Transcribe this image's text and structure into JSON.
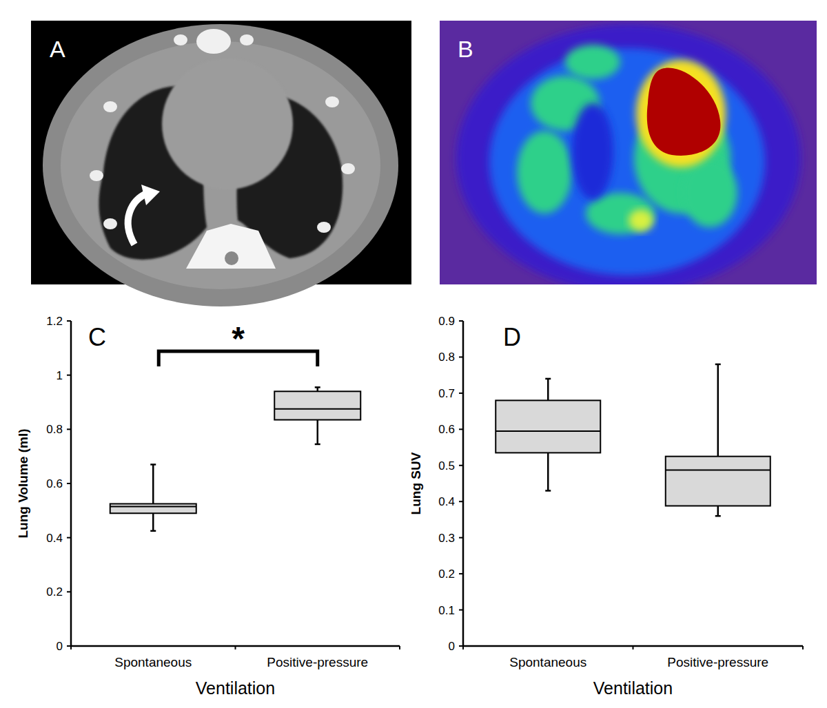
{
  "images": [
    {
      "label": "A"
    },
    {
      "label": "B"
    }
  ],
  "chart_data": [
    {
      "type": "box",
      "title": "C",
      "x_label": "Ventilation",
      "y_label": "Lung Volume (ml)",
      "categories": [
        "Spontaneous",
        "Positive-pressure"
      ],
      "boxes": [
        {
          "min": 0.425,
          "q1": 0.49,
          "median": 0.515,
          "q3": 0.525,
          "max": 0.67
        },
        {
          "min": 0.745,
          "q1": 0.835,
          "median": 0.875,
          "q3": 0.94,
          "max": 0.955
        }
      ],
      "color": "#d9d9d9",
      "annotation": "*",
      "ylim": [
        0,
        1.2
      ],
      "yticks": [
        0,
        0.2,
        0.4,
        0.6,
        0.8,
        1,
        1.2
      ],
      "grid": false
    },
    {
      "type": "box",
      "title": "D",
      "x_label": "Ventilation",
      "y_label": "Lung SUV",
      "categories": [
        "Spontaneous",
        "Positive-pressure"
      ],
      "boxes": [
        {
          "min": 0.43,
          "q1": 0.535,
          "median": 0.595,
          "q3": 0.68,
          "max": 0.74
        },
        {
          "min": 0.36,
          "q1": 0.388,
          "median": 0.487,
          "q3": 0.525,
          "max": 0.78
        }
      ],
      "color": "#d9d9d9",
      "ylim": [
        0,
        0.9
      ],
      "yticks": [
        0,
        0.1,
        0.2,
        0.3,
        0.4,
        0.5,
        0.6,
        0.7,
        0.8,
        0.9
      ],
      "grid": false
    }
  ]
}
